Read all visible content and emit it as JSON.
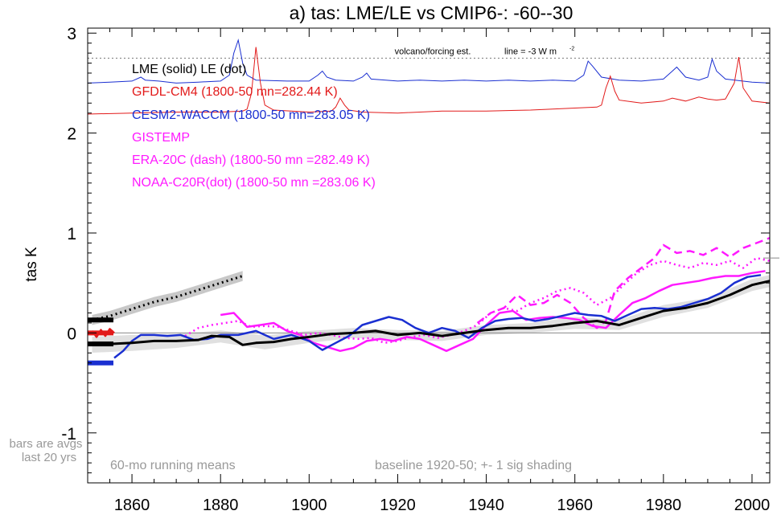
{
  "chart_data": {
    "type": "line",
    "title": "a) tas: LME/LE vs CMIP6-: -60--30",
    "ylabel": "tas K",
    "xlabel": "",
    "xlim": [
      1850,
      2004
    ],
    "ylim": [
      -1.5,
      3.05
    ],
    "xticks": [
      1860,
      1880,
      1900,
      1920,
      1940,
      1960,
      1980,
      2000
    ],
    "yticks": [
      -1,
      0,
      1,
      2,
      3
    ],
    "grid": false,
    "legend_placement": "top-left",
    "legend": [
      {
        "text": "LME (solid)   LE (dot)",
        "color": "#000000"
      },
      {
        "text": "GFDL-CM4 (1800-50 mn=282.44 K)",
        "color": "#e21a1a"
      },
      {
        "text": "CESM2-WACCM (1800-50 mn=283.05 K)",
        "color": "#1a2fd1"
      },
      {
        "text": "GISTEMP",
        "color": "#ff19ff"
      },
      {
        "text": "ERA-20C (dash) (1800-50 mn =282.49 K)",
        "color": "#ff19ff"
      },
      {
        "text": "NOAA-C20R(dot) (1800-50 mn =283.06 K)",
        "color": "#ff19ff"
      }
    ],
    "annotations": {
      "forcing_label": "volcano/forcing est.",
      "forcing_line_label": "line = -3 W m",
      "forcing_line_sup": "-2",
      "forcing_line_y": 2.75,
      "bars_note_1": "bars are avgs",
      "bars_note_2": "last 20 yrs",
      "running_mean_note": "60-mo running means",
      "baseline_note": "baseline 1920-50; +- 1 sig shading"
    },
    "forcing_series": [
      {
        "name": "CESM2-WACCM forcing",
        "color": "#1a2fd1",
        "x": [
          1850,
          1855,
          1860,
          1862,
          1863,
          1866,
          1870,
          1875,
          1880,
          1882,
          1883,
          1884,
          1885,
          1886,
          1888,
          1895,
          1900,
          1902,
          1903,
          1904,
          1906,
          1910,
          1912,
          1913,
          1914,
          1920,
          1925,
          1930,
          1935,
          1940,
          1945,
          1950,
          1955,
          1960,
          1962,
          1963,
          1964,
          1966,
          1970,
          1975,
          1980,
          1982,
          1983,
          1985,
          1988,
          1990,
          1991,
          1992,
          1994,
          2000,
          2004
        ],
        "y": [
          2.5,
          2.51,
          2.52,
          2.56,
          2.53,
          2.52,
          2.5,
          2.51,
          2.52,
          2.58,
          2.8,
          2.93,
          2.7,
          2.58,
          2.53,
          2.52,
          2.52,
          2.58,
          2.62,
          2.56,
          2.53,
          2.52,
          2.56,
          2.6,
          2.54,
          2.52,
          2.53,
          2.52,
          2.53,
          2.52,
          2.53,
          2.52,
          2.53,
          2.52,
          2.58,
          2.72,
          2.67,
          2.56,
          2.53,
          2.52,
          2.54,
          2.62,
          2.66,
          2.56,
          2.53,
          2.56,
          2.74,
          2.62,
          2.54,
          2.51,
          2.5
        ]
      },
      {
        "name": "GFDL-CM4 forcing",
        "color": "#e21a1a",
        "x": [
          1850,
          1860,
          1870,
          1880,
          1885,
          1886,
          1887,
          1888,
          1889,
          1890,
          1892,
          1900,
          1905,
          1906,
          1907,
          1908,
          1909,
          1912,
          1920,
          1930,
          1940,
          1950,
          1960,
          1965,
          1966,
          1967,
          1968,
          1969,
          1970,
          1975,
          1980,
          1982,
          1985,
          1988,
          1990,
          1992,
          1994,
          1996,
          1997,
          1998,
          2000,
          2004
        ],
        "y": [
          2.19,
          2.2,
          2.21,
          2.21,
          2.22,
          2.24,
          2.4,
          2.86,
          2.5,
          2.28,
          2.23,
          2.21,
          2.22,
          2.26,
          2.35,
          2.28,
          2.23,
          2.21,
          2.2,
          2.22,
          2.22,
          2.23,
          2.25,
          2.26,
          2.28,
          2.45,
          2.57,
          2.42,
          2.33,
          2.3,
          2.32,
          2.35,
          2.32,
          2.36,
          2.34,
          2.33,
          2.34,
          2.5,
          2.76,
          2.45,
          2.32,
          2.3
        ]
      }
    ],
    "series": [
      {
        "name": "LME (solid)",
        "color": "#000000",
        "style": "solid",
        "x": [
          1850,
          1855,
          1860,
          1865,
          1870,
          1875,
          1878,
          1882,
          1885,
          1888,
          1892,
          1896,
          1900,
          1905,
          1910,
          1915,
          1920,
          1925,
          1930,
          1935,
          1940,
          1945,
          1950,
          1955,
          1960,
          1965,
          1970,
          1975,
          1980,
          1985,
          1990,
          1995,
          2000,
          2004
        ],
        "y": [
          -0.12,
          -0.11,
          -0.1,
          -0.08,
          -0.08,
          -0.07,
          -0.03,
          -0.04,
          -0.12,
          -0.1,
          -0.09,
          -0.06,
          -0.04,
          -0.01,
          0.0,
          0.02,
          -0.02,
          0.0,
          -0.03,
          0.0,
          0.03,
          0.05,
          0.05,
          0.07,
          0.1,
          0.12,
          0.08,
          0.15,
          0.22,
          0.25,
          0.3,
          0.38,
          0.48,
          0.52
        ]
      },
      {
        "name": "LE (dot)",
        "color": "#000000",
        "style": "dotted",
        "x": [
          1851,
          1855,
          1860,
          1865,
          1870,
          1875,
          1880,
          1885
        ],
        "y": [
          0.13,
          0.17,
          0.24,
          0.31,
          0.36,
          0.43,
          0.5,
          0.57
        ]
      },
      {
        "name": "CESM2-WACCM",
        "color": "#1a2fd1",
        "style": "solid",
        "x": [
          1856,
          1858,
          1860,
          1862,
          1865,
          1868,
          1871,
          1874,
          1877,
          1880,
          1884,
          1888,
          1892,
          1896,
          1900,
          1903,
          1906,
          1909,
          1912,
          1915,
          1918,
          1921,
          1924,
          1927,
          1930,
          1933,
          1936,
          1939,
          1942,
          1945,
          1948,
          1951,
          1954,
          1957,
          1960,
          1963,
          1966,
          1969,
          1972,
          1975,
          1978,
          1981,
          1984,
          1987,
          1990,
          1993,
          1996,
          1999,
          2002
        ],
        "y": [
          -0.25,
          -0.18,
          -0.08,
          -0.02,
          -0.02,
          -0.03,
          -0.02,
          -0.07,
          -0.06,
          -0.02,
          -0.02,
          0.02,
          -0.06,
          -0.02,
          -0.08,
          -0.17,
          -0.1,
          -0.03,
          0.08,
          0.12,
          0.16,
          0.13,
          0.05,
          0.0,
          0.05,
          0.02,
          -0.05,
          0.05,
          0.12,
          0.14,
          0.15,
          0.12,
          0.14,
          0.17,
          0.2,
          0.18,
          0.17,
          0.12,
          0.18,
          0.24,
          0.25,
          0.24,
          0.26,
          0.3,
          0.34,
          0.4,
          0.5,
          0.56,
          0.58
        ]
      },
      {
        "name": "GFDL-CM4",
        "color": "#e21a1a",
        "style": "solid",
        "x": [
          1851,
          1852,
          1853,
          1854,
          1855,
          1856
        ],
        "y": [
          0.02,
          -0.04,
          0.03,
          -0.03,
          0.04,
          0.0
        ]
      },
      {
        "name": "GISTEMP",
        "color": "#ff19ff",
        "style": "solid",
        "x": [
          1880,
          1883,
          1886,
          1889,
          1892,
          1895,
          1898,
          1901,
          1904,
          1907,
          1910,
          1913,
          1916,
          1919,
          1922,
          1925,
          1928,
          1931,
          1934,
          1937,
          1940,
          1943,
          1946,
          1949,
          1952,
          1955,
          1958,
          1961,
          1964,
          1967,
          1970,
          1973,
          1976,
          1979,
          1982,
          1985,
          1988,
          1991,
          1994,
          1997,
          2000,
          2003
        ],
        "y": [
          0.18,
          0.2,
          0.06,
          0.08,
          0.1,
          0.02,
          -0.02,
          -0.1,
          -0.14,
          -0.18,
          -0.15,
          -0.08,
          -0.06,
          -0.08,
          -0.04,
          -0.06,
          -0.12,
          -0.18,
          -0.12,
          -0.06,
          0.08,
          0.2,
          0.22,
          0.13,
          0.15,
          0.16,
          0.15,
          0.13,
          0.07,
          0.05,
          0.18,
          0.3,
          0.35,
          0.42,
          0.48,
          0.5,
          0.52,
          0.55,
          0.57,
          0.57,
          0.6,
          0.62
        ]
      },
      {
        "name": "ERA-20C (dash)",
        "color": "#ff19ff",
        "style": "dashed",
        "x": [
          1938,
          1941,
          1944,
          1947,
          1950,
          1953,
          1956,
          1959,
          1962,
          1965,
          1967,
          1969,
          1972,
          1975,
          1978,
          1980,
          1983,
          1986,
          1989,
          1992,
          1995,
          1998,
          2001,
          2004
        ],
        "y": [
          0.1,
          0.2,
          0.25,
          0.38,
          0.28,
          0.3,
          0.38,
          0.3,
          0.15,
          0.05,
          0.12,
          0.42,
          0.55,
          0.65,
          0.75,
          0.88,
          0.8,
          0.82,
          0.78,
          0.85,
          0.76,
          0.85,
          0.9,
          0.95
        ]
      },
      {
        "name": "NOAA-C20R(dot)",
        "color": "#ff19ff",
        "style": "dotted",
        "x": [
          1872,
          1875,
          1878,
          1881,
          1884,
          1887,
          1890,
          1893,
          1896,
          1899,
          1902,
          1905,
          1908,
          1911,
          1914,
          1917,
          1920,
          1923,
          1926,
          1929,
          1932,
          1935,
          1938,
          1941,
          1944,
          1947,
          1950,
          1953,
          1956,
          1959,
          1962,
          1965,
          1968,
          1971,
          1974,
          1977,
          1980,
          1983,
          1986,
          1989,
          1992,
          1995,
          1998,
          2001,
          2004
        ],
        "y": [
          -0.03,
          0.05,
          0.08,
          0.1,
          0.12,
          0.06,
          0.07,
          0.06,
          0.02,
          -0.02,
          0.0,
          -0.02,
          -0.05,
          -0.06,
          -0.05,
          -0.1,
          -0.08,
          -0.04,
          -0.02,
          -0.05,
          -0.02,
          0.02,
          0.08,
          0.2,
          0.25,
          0.22,
          0.3,
          0.35,
          0.42,
          0.45,
          0.4,
          0.28,
          0.35,
          0.48,
          0.6,
          0.68,
          0.72,
          0.68,
          0.65,
          0.7,
          0.68,
          0.72,
          0.65,
          0.75,
          0.72
        ]
      }
    ],
    "shading": {
      "name": "LME +- 1 sig",
      "color": "#e0e0e0",
      "x": [
        1851,
        1860,
        1870,
        1880,
        1890,
        1900,
        1910,
        1920,
        1930,
        1940,
        1950,
        1960,
        1970,
        1980,
        1990,
        2000,
        2004
      ],
      "sigma": [
        0.08,
        0.08,
        0.07,
        0.06,
        0.07,
        0.06,
        0.05,
        0.05,
        0.05,
        0.05,
        0.05,
        0.06,
        0.05,
        0.06,
        0.05,
        0.06,
        0.06
      ]
    },
    "le_shading_sigma": 0.05,
    "bars": [
      {
        "name": "LME last 20 yrs",
        "color": "#000000",
        "value": -0.11
      },
      {
        "name": "CESM2-WACCM last 20 yrs",
        "color": "#1a2fd1",
        "value": -0.3
      },
      {
        "name": "GFDL-CM4 last 20 yrs",
        "color": "#e21a1a",
        "value": 0.0
      },
      {
        "name": "LE last 20 yrs",
        "color": "#000000",
        "value": 0.13
      }
    ],
    "right_axis_mark": 0.75
  }
}
